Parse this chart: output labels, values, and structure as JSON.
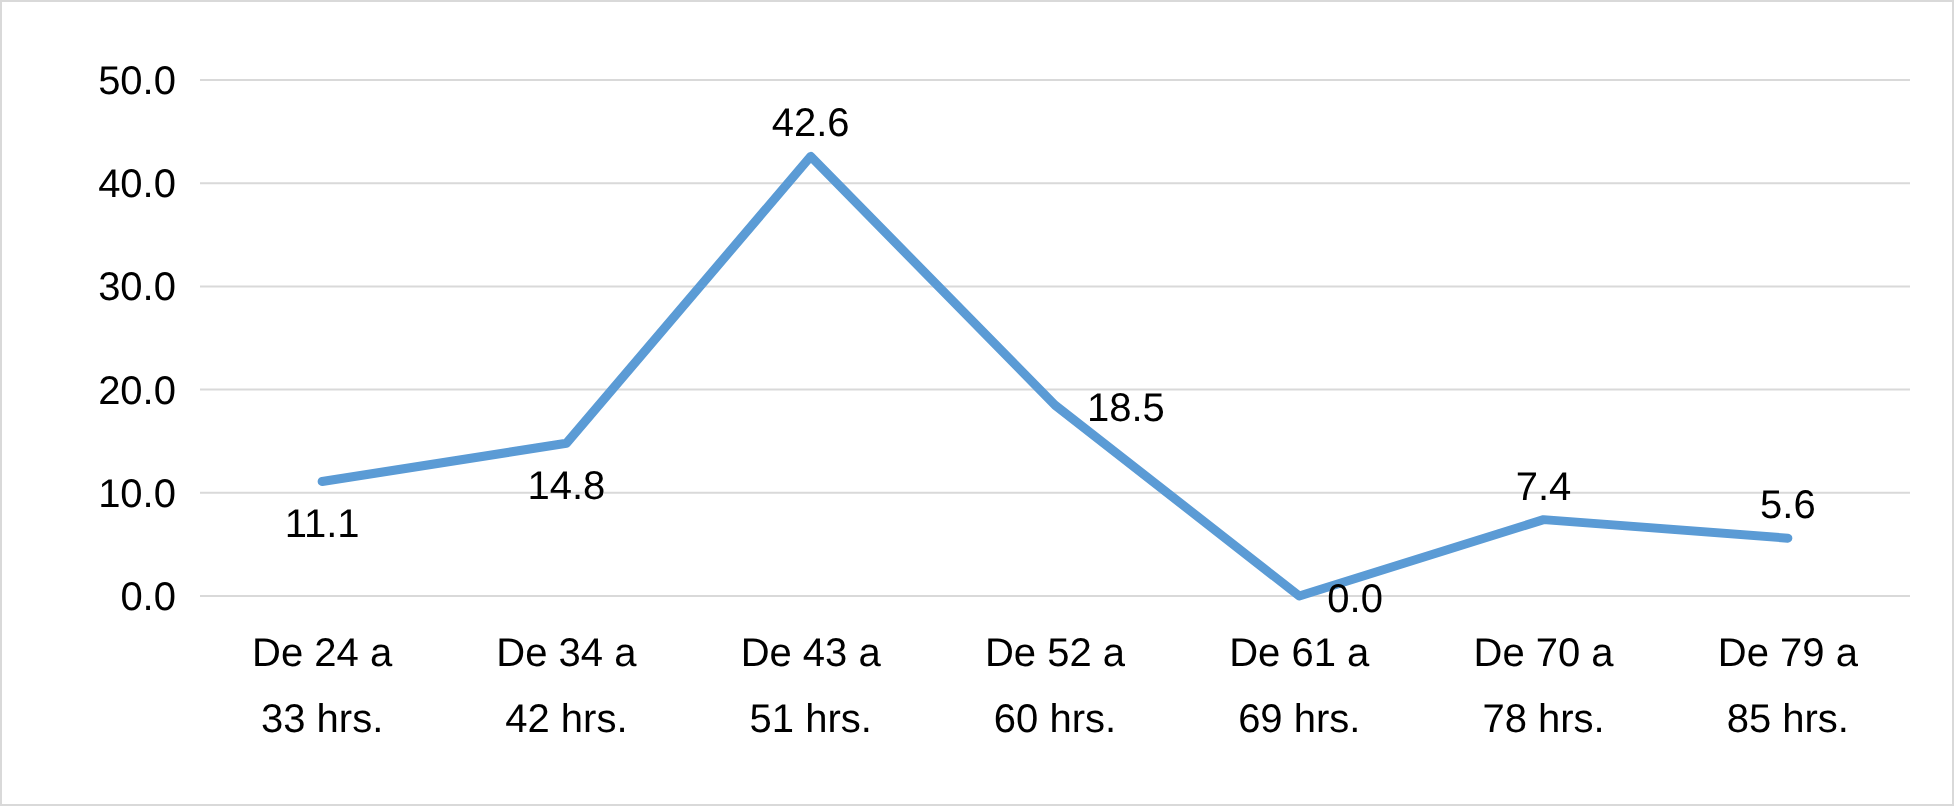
{
  "chart_data": {
    "type": "line",
    "categories": [
      "De 24 a 33 hrs.",
      "De 34 a 42 hrs.",
      "De 43 a 51 hrs.",
      "De 52 a 60 hrs.",
      "De 61 a 69 hrs.",
      "De 70 a 78 hrs.",
      "De 79 a 85 hrs."
    ],
    "series": [
      {
        "color": "#5b9bd5",
        "values": [
          11.1,
          14.8,
          42.6,
          18.5,
          0,
          7.4,
          5.6
        ],
        "value_labels": [
          "11.1",
          "14.8",
          "42.6",
          "18.5",
          "0.0",
          "7.4",
          "5.6"
        ]
      }
    ],
    "ylim": [
      0,
      50
    ],
    "yticks": [
      {
        "value": 0,
        "label": "0.0"
      },
      {
        "value": 10,
        "label": "10.0"
      },
      {
        "value": 20,
        "label": "20.0"
      },
      {
        "value": 30,
        "label": "30.0"
      },
      {
        "value": 40,
        "label": "40.0"
      },
      {
        "value": 50,
        "label": "50.0"
      }
    ],
    "grid": "y",
    "marker": "none",
    "line_style": "solid"
  }
}
